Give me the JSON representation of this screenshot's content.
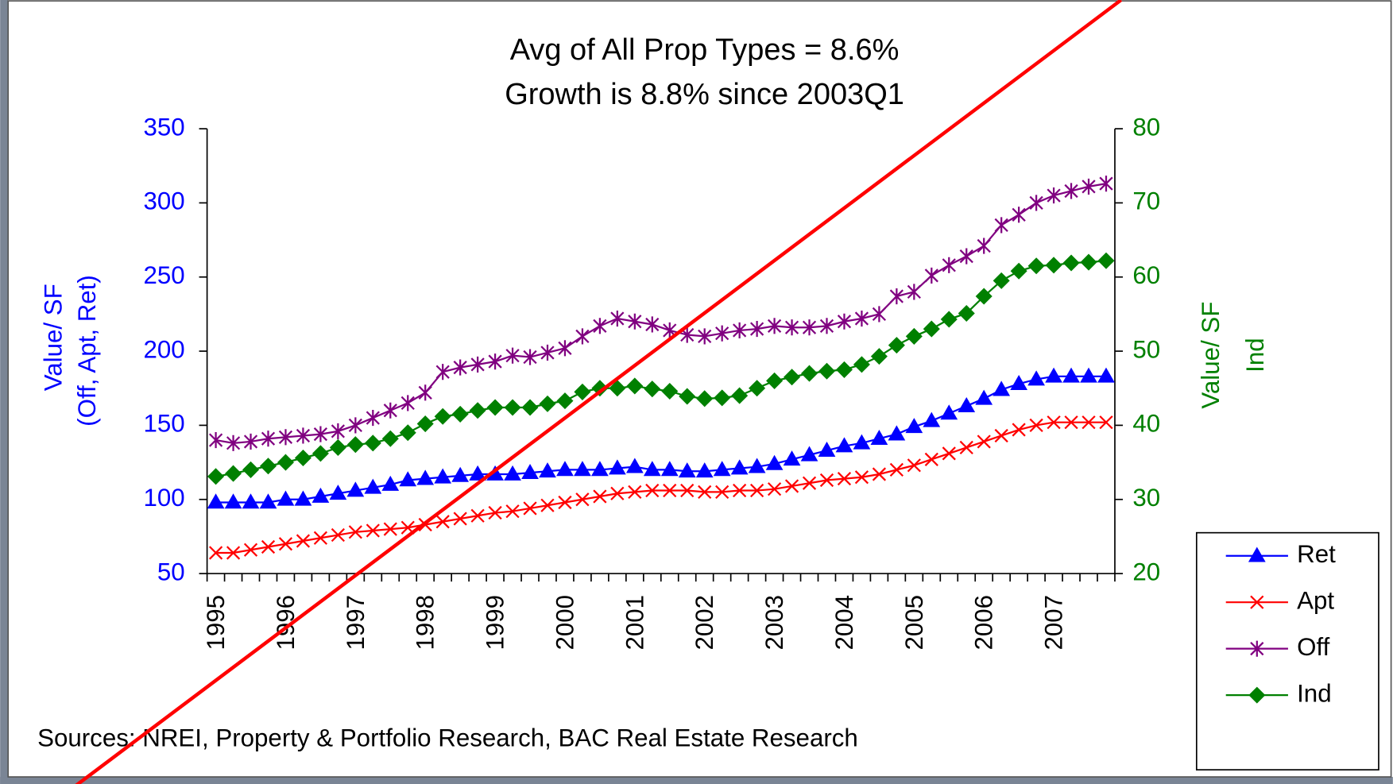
{
  "chart_data": {
    "type": "line",
    "title": "Avg of All Prop Types = 8.6%",
    "subtitle": "Growth is 8.8% since 2003Q1",
    "y_label": [
      "Value/ SF",
      "(Off, Apt, Ret)"
    ],
    "y2_label": [
      "Value/ SF",
      "Ind"
    ],
    "source": "Sources: NREI, Property & Portfolio Research, BAC Real Estate Research",
    "categories": [
      "1995",
      null,
      null,
      null,
      "1996",
      null,
      null,
      null,
      "1997",
      null,
      null,
      null,
      "1998",
      null,
      null,
      null,
      "1999",
      null,
      null,
      null,
      "2000",
      null,
      null,
      null,
      "2001",
      null,
      null,
      null,
      "2002",
      null,
      null,
      null,
      "2003",
      null,
      null,
      null,
      "2004",
      null,
      null,
      null,
      "2005",
      null,
      null,
      null,
      "2006",
      null,
      null,
      null,
      "2007",
      null,
      null,
      null
    ],
    "ylim": [
      50,
      350
    ],
    "yticks": [
      50,
      100,
      150,
      200,
      250,
      300,
      350
    ],
    "y2lim": [
      20,
      80
    ],
    "y2ticks": [
      20,
      30,
      40,
      50,
      60,
      70,
      80
    ],
    "y_color": "#0000ff",
    "y2_color": "#008000",
    "legend": "bottom-right",
    "series": [
      {
        "name": "Ret",
        "color": "#0000ff",
        "marker": "triangle",
        "values": [
          98,
          98,
          98,
          98,
          100,
          100,
          102,
          104,
          106,
          108,
          110,
          113,
          114,
          115,
          116,
          117,
          117,
          117,
          118,
          119,
          120,
          120,
          120,
          121,
          122,
          120,
          120,
          119,
          119,
          120,
          121,
          122,
          124,
          127,
          130,
          133,
          136,
          138,
          141,
          144,
          149,
          153,
          158,
          163,
          168,
          174,
          178,
          181,
          183,
          183,
          183,
          183
        ]
      },
      {
        "name": "Apt",
        "color": "#ff0000",
        "marker": "x",
        "values": [
          64,
          64,
          66,
          68,
          70,
          72,
          74,
          76,
          78,
          79,
          80,
          81,
          83,
          85,
          87,
          89,
          91,
          92,
          94,
          96,
          98,
          100,
          102,
          104,
          105,
          106,
          106,
          106,
          105,
          105,
          106,
          106,
          107,
          109,
          111,
          113,
          114,
          115,
          117,
          120,
          123,
          127,
          131,
          135,
          139,
          143,
          147,
          150,
          152,
          152,
          152,
          152
        ]
      },
      {
        "name": "Off",
        "color": "#800080",
        "marker": "star",
        "values": [
          140,
          138,
          139,
          141,
          142,
          143,
          144,
          146,
          150,
          155,
          160,
          165,
          172,
          186,
          189,
          191,
          193,
          197,
          196,
          199,
          202,
          210,
          217,
          222,
          220,
          218,
          214,
          211,
          210,
          212,
          214,
          215,
          217,
          216,
          216,
          217,
          220,
          222,
          225,
          237,
          240,
          251,
          258,
          264,
          271,
          285,
          292,
          300,
          305,
          308,
          311,
          313
        ]
      },
      {
        "name": "Ind",
        "color": "#008000",
        "marker": "diamond",
        "axis": "y2",
        "values": [
          33.1,
          33.5,
          34,
          34.5,
          35,
          35.6,
          36.2,
          37,
          37.4,
          37.6,
          38.2,
          39,
          40.2,
          41.2,
          41.5,
          42,
          42.4,
          42.4,
          42.4,
          42.9,
          43.3,
          44.5,
          45,
          45,
          45.3,
          44.9,
          44.6,
          43.9,
          43.6,
          43.7,
          44,
          45,
          46,
          46.5,
          47,
          47.3,
          47.5,
          48.2,
          49.3,
          50.8,
          52,
          53,
          54.3,
          55.1,
          57.4,
          59.5,
          60.8,
          61.5,
          61.6,
          61.9,
          62,
          62.2
        ]
      }
    ]
  }
}
